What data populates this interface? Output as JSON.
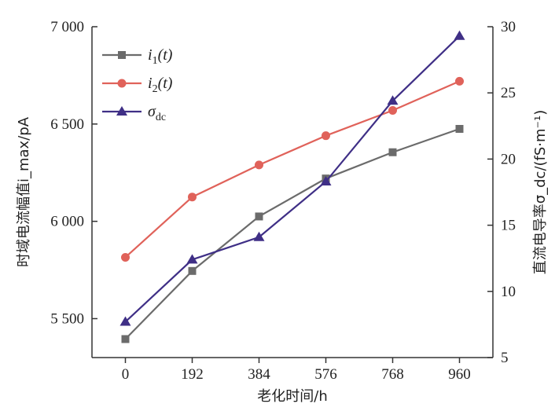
{
  "chart_data": {
    "type": "line",
    "xlabel": "老化时间/h",
    "ylabel_left": "时域电流幅值i_max/pA",
    "ylabel_right": "直流电导率σ_dc/(fS·m⁻¹)",
    "x": [
      0,
      192,
      384,
      576,
      768,
      960
    ],
    "x_tick_labels": [
      "0",
      "192",
      "384",
      "576",
      "768",
      "960"
    ],
    "ylim_left": [
      5300,
      7000
    ],
    "ylim_right": [
      5,
      30
    ],
    "y_left_ticks": [
      5500,
      6000,
      6500,
      7000
    ],
    "y_left_tick_labels": [
      "5 500",
      "6 000",
      "6 500",
      "7 000"
    ],
    "y_right_ticks": [
      5,
      10,
      15,
      20,
      25,
      30
    ],
    "y_right_tick_labels": [
      "5",
      "10",
      "15",
      "20",
      "25",
      "30"
    ],
    "legend_position": "top-left",
    "series": [
      {
        "name": "i1(t)",
        "label_main": "i",
        "label_sub": "1",
        "label_tail": "(t)",
        "axis": "left",
        "marker": "square",
        "color": "#6b6b6b",
        "values": [
          5395,
          5745,
          6025,
          6220,
          6355,
          6475
        ]
      },
      {
        "name": "i2(t)",
        "label_main": "i",
        "label_sub": "2",
        "label_tail": "(t)",
        "axis": "left",
        "marker": "circle",
        "color": "#e0625a",
        "values": [
          5815,
          6125,
          6290,
          6440,
          6570,
          6720
        ]
      },
      {
        "name": "σdc",
        "label_main": "σ",
        "label_sub": "dc",
        "label_tail": "",
        "axis": "right",
        "marker": "triangle",
        "color": "#3f2f86",
        "values": [
          7.7,
          12.4,
          14.1,
          18.3,
          24.4,
          29.3
        ]
      }
    ]
  }
}
